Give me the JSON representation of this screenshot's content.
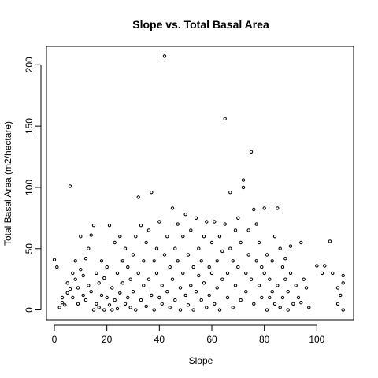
{
  "chart_data": {
    "type": "scatter",
    "title": "Slope vs. Total Basal Area",
    "xlabel": "Slope",
    "ylabel": "Total Basal Area (m2/hectare)",
    "xlim": [
      -3,
      114
    ],
    "ylim": [
      -8,
      215
    ],
    "x_ticks": [
      0,
      20,
      40,
      60,
      80,
      100
    ],
    "y_ticks": [
      0,
      50,
      100,
      150,
      200
    ],
    "x_tick_labels": [
      "0",
      "20",
      "40",
      "60",
      "80",
      "100"
    ],
    "y_tick_labels": [
      "0",
      "50",
      "100",
      "150",
      "200"
    ],
    "grid": false,
    "legend": "none",
    "point_color": "#000000",
    "points": [
      [
        0,
        41
      ],
      [
        1,
        35
      ],
      [
        2,
        2
      ],
      [
        3,
        6
      ],
      [
        3,
        10
      ],
      [
        4,
        4
      ],
      [
        5,
        14
      ],
      [
        5,
        22
      ],
      [
        6,
        101
      ],
      [
        6,
        17
      ],
      [
        7,
        30
      ],
      [
        7,
        10
      ],
      [
        8,
        40
      ],
      [
        8,
        25
      ],
      [
        9,
        18
      ],
      [
        9,
        5
      ],
      [
        10,
        60
      ],
      [
        10,
        33
      ],
      [
        11,
        28
      ],
      [
        11,
        12
      ],
      [
        12,
        8
      ],
      [
        12,
        42
      ],
      [
        13,
        50
      ],
      [
        13,
        20
      ],
      [
        14,
        61
      ],
      [
        14,
        15
      ],
      [
        15,
        69
      ],
      [
        15,
        0
      ],
      [
        16,
        30
      ],
      [
        16,
        5
      ],
      [
        17,
        22
      ],
      [
        17,
        2
      ],
      [
        18,
        40
      ],
      [
        18,
        12
      ],
      [
        19,
        0
      ],
      [
        19,
        26
      ],
      [
        20,
        10
      ],
      [
        20,
        35
      ],
      [
        21,
        69
      ],
      [
        21,
        4
      ],
      [
        22,
        18
      ],
      [
        22,
        0
      ],
      [
        23,
        55
      ],
      [
        23,
        8
      ],
      [
        24,
        30
      ],
      [
        24,
        1
      ],
      [
        25,
        60
      ],
      [
        25,
        14
      ],
      [
        26,
        22
      ],
      [
        26,
        40
      ],
      [
        27,
        5
      ],
      [
        27,
        50
      ],
      [
        28,
        10
      ],
      [
        28,
        35
      ],
      [
        29,
        2
      ],
      [
        29,
        25
      ],
      [
        30,
        45
      ],
      [
        30,
        15
      ],
      [
        31,
        60
      ],
      [
        31,
        0
      ],
      [
        32,
        92
      ],
      [
        32,
        30
      ],
      [
        33,
        69
      ],
      [
        33,
        8
      ],
      [
        34,
        40
      ],
      [
        34,
        20
      ],
      [
        35,
        55
      ],
      [
        35,
        3
      ],
      [
        36,
        65
      ],
      [
        36,
        25
      ],
      [
        37,
        96
      ],
      [
        37,
        12
      ],
      [
        38,
        40
      ],
      [
        38,
        0
      ],
      [
        39,
        30
      ],
      [
        39,
        50
      ],
      [
        40,
        10
      ],
      [
        40,
        72
      ],
      [
        41,
        20
      ],
      [
        41,
        5
      ],
      [
        42,
        207
      ],
      [
        42,
        45
      ],
      [
        43,
        60
      ],
      [
        43,
        15
      ],
      [
        44,
        35
      ],
      [
        44,
        2
      ],
      [
        45,
        83
      ],
      [
        45,
        25
      ],
      [
        46,
        50
      ],
      [
        46,
        8
      ],
      [
        47,
        40
      ],
      [
        47,
        70
      ],
      [
        48,
        18
      ],
      [
        48,
        0
      ],
      [
        49,
        60
      ],
      [
        49,
        30
      ],
      [
        50,
        78
      ],
      [
        50,
        12
      ],
      [
        51,
        45
      ],
      [
        51,
        4
      ],
      [
        52,
        20
      ],
      [
        52,
        65
      ],
      [
        53,
        35
      ],
      [
        53,
        0
      ],
      [
        54,
        75
      ],
      [
        54,
        15
      ],
      [
        55,
        50
      ],
      [
        55,
        28
      ],
      [
        56,
        8
      ],
      [
        56,
        40
      ],
      [
        57,
        60
      ],
      [
        57,
        22
      ],
      [
        58,
        2
      ],
      [
        58,
        72
      ],
      [
        59,
        35
      ],
      [
        59,
        12
      ],
      [
        60,
        55
      ],
      [
        60,
        30
      ],
      [
        61,
        72
      ],
      [
        61,
        5
      ],
      [
        62,
        40
      ],
      [
        62,
        18
      ],
      [
        63,
        60
      ],
      [
        63,
        0
      ],
      [
        64,
        25
      ],
      [
        64,
        48
      ],
      [
        65,
        156
      ],
      [
        65,
        70
      ],
      [
        66,
        30
      ],
      [
        66,
        10
      ],
      [
        67,
        96
      ],
      [
        67,
        50
      ],
      [
        68,
        40
      ],
      [
        68,
        2
      ],
      [
        69,
        65
      ],
      [
        69,
        20
      ],
      [
        70,
        35
      ],
      [
        70,
        75
      ],
      [
        71,
        55
      ],
      [
        71,
        8
      ],
      [
        72,
        106
      ],
      [
        72,
        100
      ],
      [
        73,
        30
      ],
      [
        73,
        15
      ],
      [
        74,
        65
      ],
      [
        74,
        45
      ],
      [
        75,
        129
      ],
      [
        75,
        25
      ],
      [
        76,
        82
      ],
      [
        76,
        5
      ],
      [
        77,
        40
      ],
      [
        77,
        70
      ],
      [
        78,
        20
      ],
      [
        78,
        55
      ],
      [
        79,
        10
      ],
      [
        79,
        35
      ],
      [
        80,
        83
      ],
      [
        80,
        30
      ],
      [
        81,
        45
      ],
      [
        81,
        0
      ],
      [
        82,
        25
      ],
      [
        82,
        10
      ],
      [
        83,
        40
      ],
      [
        83,
        15
      ],
      [
        84,
        60
      ],
      [
        84,
        5
      ],
      [
        85,
        83
      ],
      [
        85,
        20
      ],
      [
        86,
        50
      ],
      [
        86,
        2
      ],
      [
        87,
        35
      ],
      [
        87,
        10
      ],
      [
        88,
        42
      ],
      [
        88,
        25
      ],
      [
        89,
        0
      ],
      [
        89,
        15
      ],
      [
        90,
        52
      ],
      [
        90,
        30
      ],
      [
        91,
        5
      ],
      [
        92,
        20
      ],
      [
        93,
        10
      ],
      [
        94,
        55
      ],
      [
        94,
        6
      ],
      [
        95,
        25
      ],
      [
        96,
        18
      ],
      [
        97,
        2
      ],
      [
        100,
        36
      ],
      [
        102,
        30
      ],
      [
        103,
        36
      ],
      [
        105,
        56
      ],
      [
        106,
        30
      ],
      [
        108,
        18
      ],
      [
        108,
        5
      ],
      [
        109,
        12
      ],
      [
        110,
        28
      ],
      [
        110,
        22
      ],
      [
        110,
        0
      ]
    ]
  }
}
